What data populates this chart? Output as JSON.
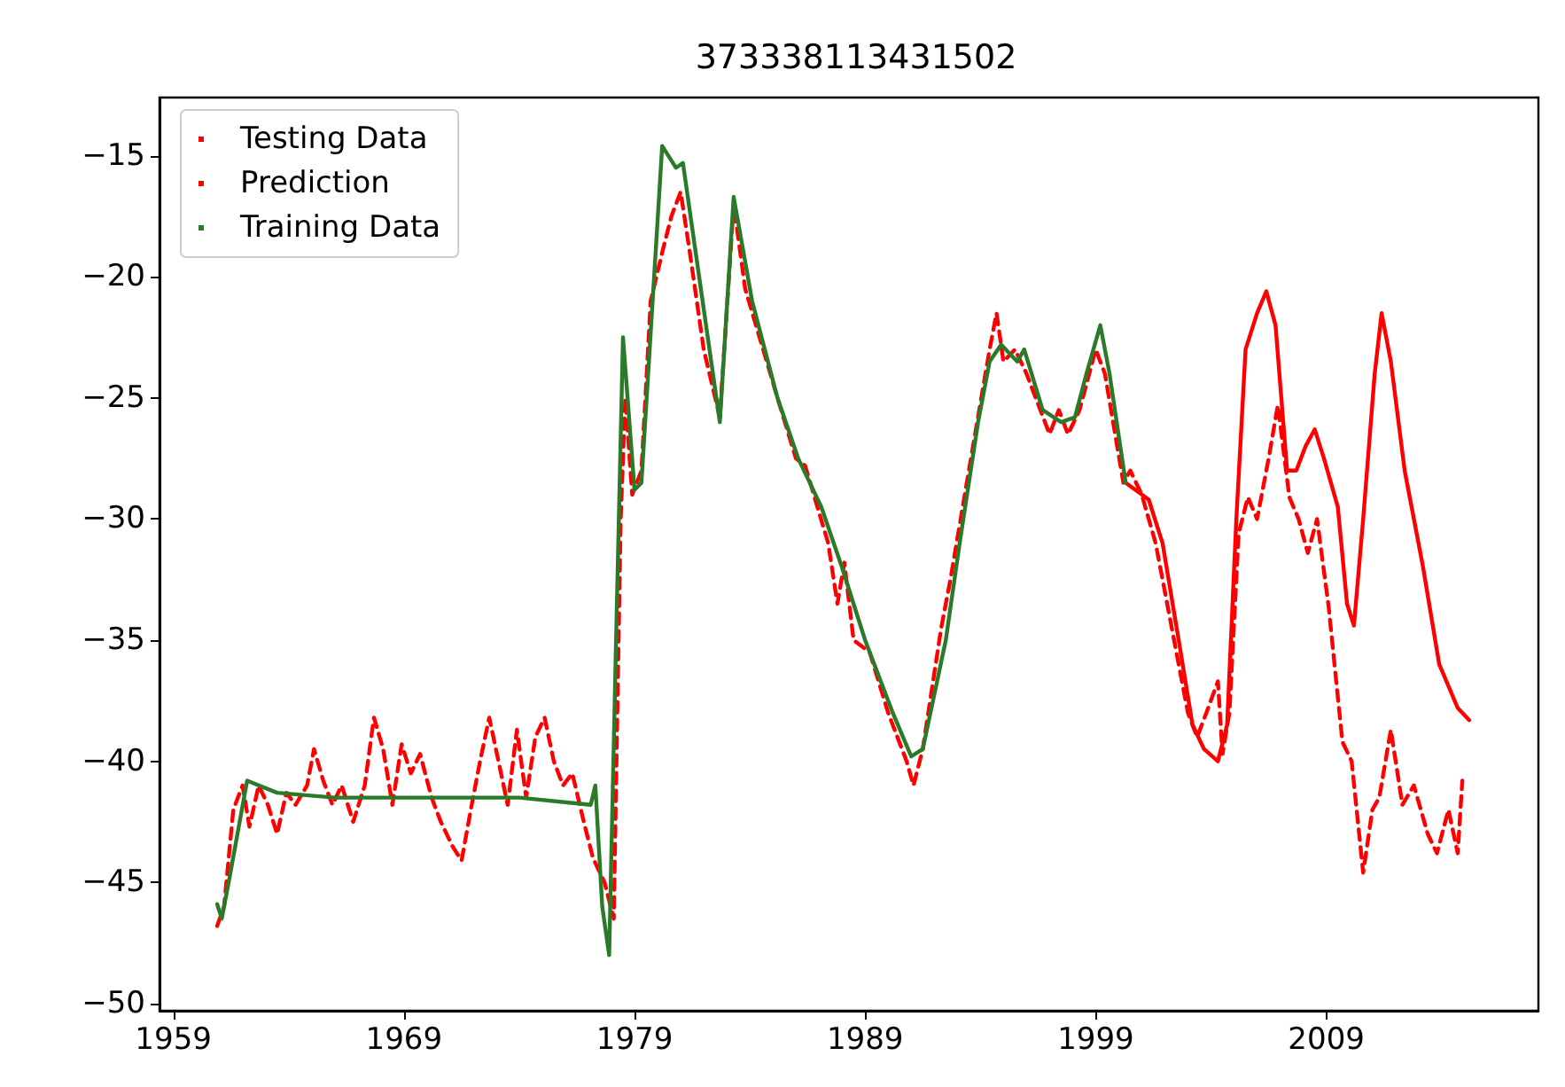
{
  "chart_data": {
    "type": "line",
    "title": "373338113431502",
    "xlim": [
      1958.4,
      2018.2
    ],
    "xticks": [
      1959,
      1969,
      1979,
      1989,
      1999,
      2009
    ],
    "ylim": [
      -50.3,
      -12.6
    ],
    "yticks": [
      -50,
      -45,
      -40,
      -35,
      -30,
      -25,
      -20,
      -15
    ],
    "legend": "top left",
    "grid": false,
    "marker": "none",
    "line_style": "solid",
    "series": [
      {
        "name": "Testing Data",
        "color": "#ff0000",
        "x": [
          2000.3,
          2001.3,
          2001.9,
          2002.6,
          2003.2,
          2003.7,
          2004.3,
          2004.7,
          2005.1,
          2005.5,
          2006,
          2006.4,
          2006.8,
          2007.3,
          2007.7,
          2008.1,
          2008.5,
          2008.9,
          2009.5,
          2009.9,
          2010.2,
          2010.6,
          2011.1,
          2011.4,
          2011.8,
          2012.4,
          2013.2,
          2013.9,
          2014.7,
          2015.2
        ],
        "values": [
          -28.5,
          -29.2,
          -31,
          -35,
          -38.5,
          -39.5,
          -40,
          -38.5,
          -30,
          -23,
          -21.5,
          -20.6,
          -22,
          -28,
          -28,
          -27,
          -26.3,
          -27.5,
          -29.5,
          -33.5,
          -34.4,
          -30,
          -24,
          -21.5,
          -23.5,
          -28,
          -32,
          -36,
          -37.8,
          -38.3
        ]
      },
      {
        "name": "Prediction",
        "color": "#ff0000",
        "line_style": "dashed",
        "x": [
          1960.9,
          1961.2,
          1961.6,
          1962,
          1962.3,
          1962.7,
          1963.1,
          1963.5,
          1963.9,
          1964.3,
          1964.8,
          1965.1,
          1965.5,
          1965.9,
          1966.3,
          1966.8,
          1967.3,
          1967.7,
          1968.1,
          1968.5,
          1968.9,
          1969.3,
          1969.7,
          1970.2,
          1970.6,
          1971.1,
          1971.5,
          1971.9,
          1972.3,
          1972.7,
          1973.1,
          1973.5,
          1973.9,
          1974.3,
          1974.7,
          1975.1,
          1975.5,
          1975.9,
          1976.3,
          1976.8,
          1977.2,
          1977.7,
          1978.1,
          1978.4,
          1978.6,
          1978.9,
          1979.3,
          1979.7,
          1980.2,
          1980.6,
          1981,
          1981.4,
          1982,
          1982.7,
          1983.3,
          1983.8,
          1985.2,
          1986,
          1986.4,
          1987.4,
          1987.8,
          1988.1,
          1988.5,
          1989.2,
          1990,
          1990.8,
          1991.1,
          1991.5,
          1992.3,
          1992.7,
          1993.5,
          1994.4,
          1994.7,
          1995,
          1995.5,
          1996,
          1996.6,
          1997,
          1997.4,
          1997.8,
          1998.3,
          1999,
          1999.4,
          2000.2,
          2000.5,
          2001,
          2001.6,
          2002.4,
          2003,
          2003.4,
          2003.8,
          2004.3,
          2004.5,
          2004.8,
          2005.2,
          2005.6,
          2006,
          2006.5,
          2006.9,
          2007.4,
          2007.8,
          2008.2,
          2008.6,
          2009.1,
          2009.7,
          2010.1,
          2010.6,
          2011,
          2011.3,
          2011.8,
          2012.3,
          2012.8,
          2013.4,
          2013.8,
          2014.3,
          2014.7,
          2014.9
        ],
        "values": [
          -46.8,
          -46,
          -42,
          -41,
          -42.7,
          -41,
          -41.8,
          -43,
          -41.3,
          -41.8,
          -41,
          -39.5,
          -40.8,
          -41.8,
          -41,
          -42.5,
          -41,
          -38.2,
          -39.5,
          -41.8,
          -39.3,
          -40.5,
          -39.7,
          -41.5,
          -42.5,
          -43.5,
          -44.1,
          -42,
          -40,
          -38.2,
          -40,
          -41.8,
          -38.7,
          -41.5,
          -39,
          -38.2,
          -40,
          -41,
          -40.5,
          -42.5,
          -44,
          -45,
          -46.5,
          -30,
          -25,
          -29,
          -28,
          -21,
          -19,
          -17.5,
          -16.5,
          -19,
          -23,
          -25.8,
          -17,
          -20.5,
          -25,
          -27.5,
          -27.8,
          -31,
          -33.5,
          -31.8,
          -35,
          -35.5,
          -38,
          -40,
          -41,
          -39.5,
          -34.5,
          -32.5,
          -28,
          -23,
          -21.5,
          -23.5,
          -23,
          -24,
          -25.5,
          -26.5,
          -25.5,
          -26.5,
          -25.5,
          -23,
          -24,
          -28.5,
          -28,
          -29,
          -31,
          -35,
          -38,
          -39,
          -38,
          -36.7,
          -39.7,
          -38,
          -30.6,
          -29.1,
          -30,
          -27.5,
          -25.3,
          -29.1,
          -30,
          -31.4,
          -30,
          -33.6,
          -39.2,
          -40,
          -44.6,
          -42,
          -41.5,
          -38.7,
          -41.8,
          -41,
          -43,
          -43.8,
          -42,
          -43.8,
          -40.8
        ]
      },
      {
        "name": "Training Data",
        "color": "#2a7a2a",
        "x": [
          1960.9,
          1961.1,
          1961.4,
          1962.2,
          1963.5,
          1966,
          1970,
          1974,
          1977.1,
          1977.3,
          1977.6,
          1977.9,
          1978.2,
          1978.5,
          1979,
          1979.3,
          1980.2,
          1980.8,
          1981.1,
          1982.7,
          1983.3,
          1984.1,
          1985.2,
          1986.1,
          1987.1,
          1988,
          1989,
          1990.2,
          1991,
          1991.5,
          1992.5,
          1993.1,
          1993.9,
          1994.4,
          1994.9,
          1995.6,
          1995.9,
          1996.7,
          1997.5,
          1998.1,
          1998.6,
          1999.2,
          1999.6,
          2000.3
        ],
        "values": [
          -45.9,
          -46.5,
          -45,
          -40.8,
          -41.3,
          -41.5,
          -41.5,
          -41.5,
          -41.8,
          -41,
          -46,
          -48,
          -35,
          -22.5,
          -28.8,
          -28.5,
          -14.6,
          -15.5,
          -15.3,
          -26,
          -16.7,
          -21,
          -25,
          -27.5,
          -29.5,
          -32,
          -35,
          -38,
          -39.8,
          -39.5,
          -35,
          -31,
          -26,
          -23.5,
          -22.8,
          -23.5,
          -23,
          -25.5,
          -26,
          -25.8,
          -24,
          -22,
          -24,
          -28.5
        ]
      }
    ]
  }
}
